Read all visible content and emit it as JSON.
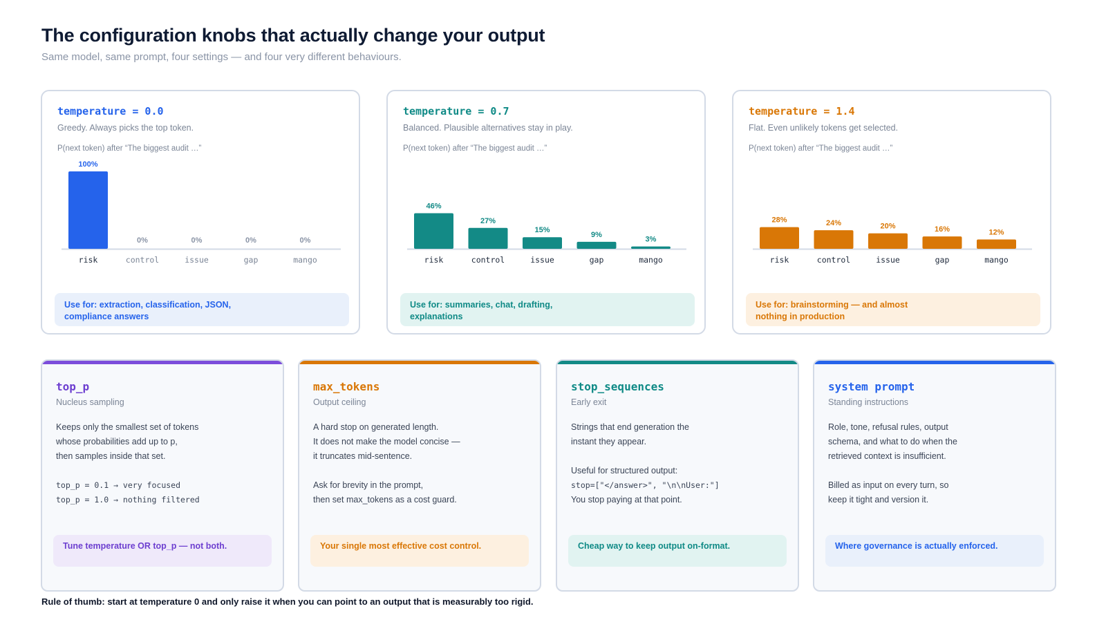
{
  "header": {
    "title": "The configuration knobs that actually change your output",
    "subtitle": "Same model, same prompt, four settings — and four very different behaviours."
  },
  "temperature_cards": [
    {
      "label": "temperature = 0.0",
      "description": "Greedy. Always picks the top token.",
      "caption": "P(next token) after “The biggest audit …”",
      "use_for": "Use for: extraction, classification, JSON, compliance answers",
      "accent": "#2563eb",
      "use_bg": "#e9f0fb"
    },
    {
      "label": "temperature = 0.7",
      "description": "Balanced. Plausible alternatives stay in play.",
      "caption": "P(next token) after “The biggest audit …”",
      "use_for": "Use for: summaries, chat, drafting, explanations",
      "accent": "#0f8a86",
      "use_bg": "#e1f3f1"
    },
    {
      "label": "temperature = 1.4",
      "description": "Flat. Even unlikely tokens get selected.",
      "caption": "P(next token) after “The biggest audit …”",
      "use_for": "Use for: brainstorming — and almost nothing in production",
      "accent": "#d97706",
      "use_bg": "#fdf0e0"
    }
  ],
  "chart_data": [
    {
      "type": "bar",
      "title": "temperature = 0.0",
      "categories": [
        "risk",
        "control",
        "issue",
        "gap",
        "mango"
      ],
      "values": [
        100,
        0,
        0,
        0,
        0
      ],
      "ylim": [
        0,
        100
      ],
      "unit": "%",
      "color": "#2563eb",
      "zero_color": "#8a94a6"
    },
    {
      "type": "bar",
      "title": "temperature = 0.7",
      "categories": [
        "risk",
        "control",
        "issue",
        "gap",
        "mango"
      ],
      "values": [
        46,
        27,
        15,
        9,
        3
      ],
      "ylim": [
        0,
        100
      ],
      "unit": "%",
      "color": "#138a86",
      "zero_color": "#8a94a6"
    },
    {
      "type": "bar",
      "title": "temperature = 1.4",
      "categories": [
        "risk",
        "control",
        "issue",
        "gap",
        "mango"
      ],
      "values": [
        28,
        24,
        20,
        16,
        12
      ],
      "ylim": [
        0,
        100
      ],
      "unit": "%",
      "color": "#d97706",
      "zero_color": "#8a94a6"
    }
  ],
  "knob_cards": [
    {
      "title": "top_p",
      "subtitle": "Nucleus sampling",
      "body": [
        {
          "text": "Keeps only the smallest set of tokens",
          "code": false
        },
        {
          "text": "whose probabilities add up to p,",
          "code": false
        },
        {
          "text": "then samples inside that set.",
          "code": false
        },
        {
          "text": "",
          "code": false
        },
        {
          "text": "top_p = 0.1 → very focused",
          "code": true
        },
        {
          "text": "top_p = 1.0 → nothing filtered",
          "code": true
        }
      ],
      "footer": "Tune temperature OR top_p — not both.",
      "accent": "#6d3fd0",
      "bar_color": "#7c4ddb",
      "footer_bg": "#efe9fa"
    },
    {
      "title": "max_tokens",
      "subtitle": "Output ceiling",
      "body": [
        {
          "text": "A hard stop on generated length.",
          "code": false
        },
        {
          "text": "It does not make the model concise —",
          "code": false
        },
        {
          "text": "it truncates mid-sentence.",
          "code": false
        },
        {
          "text": "",
          "code": false
        },
        {
          "text": "Ask for brevity in the prompt,",
          "code": false
        },
        {
          "text": "then set max_tokens as a cost guard.",
          "code": false
        }
      ],
      "footer": "Your single most effective cost control.",
      "accent": "#d97706",
      "bar_color": "#d97706",
      "footer_bg": "#fdf0e0"
    },
    {
      "title": "stop_sequences",
      "subtitle": "Early exit",
      "body": [
        {
          "text": "Strings that end generation the",
          "code": false
        },
        {
          "text": "instant they appear.",
          "code": false
        },
        {
          "text": "",
          "code": false
        },
        {
          "text": "Useful for structured output:",
          "code": false
        },
        {
          "text": "stop=[\"</answer>\", \"\\n\\nUser:\"]",
          "code": true
        },
        {
          "text": "You stop paying at that point.",
          "code": false
        }
      ],
      "footer": "Cheap way to keep output on-format.",
      "accent": "#0f8a86",
      "bar_color": "#138a86",
      "footer_bg": "#e1f3f1"
    },
    {
      "title": "system prompt",
      "subtitle": "Standing instructions",
      "body": [
        {
          "text": "Role, tone, refusal rules, output",
          "code": false
        },
        {
          "text": "schema, and what to do when the",
          "code": false
        },
        {
          "text": "retrieved context is insufficient.",
          "code": false
        },
        {
          "text": "",
          "code": false
        },
        {
          "text": "Billed as input on every turn, so",
          "code": false
        },
        {
          "text": "keep it tight and version it.",
          "code": false
        }
      ],
      "footer": "Where governance is actually enforced.",
      "accent": "#2563eb",
      "bar_color": "#2563eb",
      "footer_bg": "#e9f0fb"
    }
  ],
  "footer": {
    "rule_of_thumb": "Rule of thumb: start at temperature 0 and only raise it when you can point to an output that is measurably too rigid."
  }
}
